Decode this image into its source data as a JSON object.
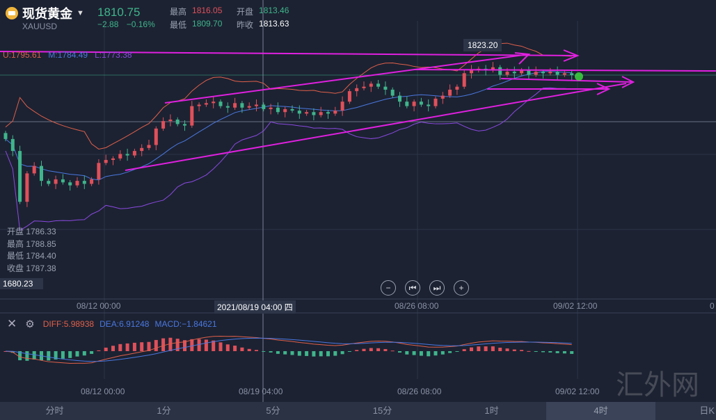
{
  "header": {
    "name": "现货黄金",
    "symbol": "XAUUSD",
    "price": "1810.75",
    "change": "−2.88",
    "change_pct": "−0.16%",
    "high_label": "最高",
    "high": "1816.05",
    "open_label": "开盘",
    "open": "1813.46",
    "low_label": "最低",
    "low": "1809.70",
    "prev_label": "昨收",
    "prev": "1813.63"
  },
  "bollinger": {
    "upper": "U:1795.61",
    "middle": "M:1784.49",
    "lower": "L:1773.38"
  },
  "peak_label": "1823.20",
  "ohlc_tooltip": {
    "open": "开盘 1786.33",
    "high": "最高 1788.85",
    "low": "最低 1784.40",
    "close": "收盘 1787.38"
  },
  "crosshair": {
    "price": "1680.23",
    "time": "2021/08/19 04:00 四"
  },
  "xaxis_main": [
    "08/12 00:00",
    "08/26 08:00",
    "09/02 12:00",
    "0"
  ],
  "xaxis_macd": [
    "08/12 00:00",
    "08/19 04:00",
    "08/26 08:00",
    "09/02 12:00"
  ],
  "macd": {
    "diff": "DIFF:5.98938",
    "dea": "DEA:6.91248",
    "macd": "MACD:−1.84621"
  },
  "tabs": [
    "分时",
    "1分",
    "5分",
    "15分",
    "1时",
    "4时",
    "日K"
  ],
  "active_tab": "4时",
  "watermark": "汇外网",
  "colors": {
    "up": "#e0505a",
    "down": "#3fb58b",
    "trend": "#e020e0",
    "diff": "#e0604a",
    "dea": "#4a78e0",
    "upper": "#e0604a",
    "mid": "#4a78e0",
    "lower": "#8a4ae0"
  },
  "closes": [
    1768,
    1760,
    1726,
    1745,
    1750,
    1740,
    1738,
    1741,
    1739,
    1737,
    1740,
    1738,
    1741,
    1752,
    1754,
    1755,
    1758,
    1757,
    1760,
    1762,
    1764,
    1775,
    1780,
    1781,
    1778,
    1777,
    1790,
    1791,
    1792,
    1793,
    1790,
    1789,
    1792,
    1789,
    1790,
    1791,
    1788,
    1789,
    1786,
    1788,
    1787,
    1785,
    1786,
    1784,
    1786,
    1785,
    1787,
    1793,
    1800,
    1802,
    1803,
    1805,
    1803,
    1801,
    1797,
    1793,
    1790,
    1793,
    1791,
    1790,
    1795,
    1797,
    1801,
    1803,
    1812,
    1814,
    1815,
    1814,
    1816,
    1811,
    1813,
    1812,
    1814,
    1811,
    1813,
    1812,
    1813,
    1811,
    1812,
    1810.75
  ]
}
